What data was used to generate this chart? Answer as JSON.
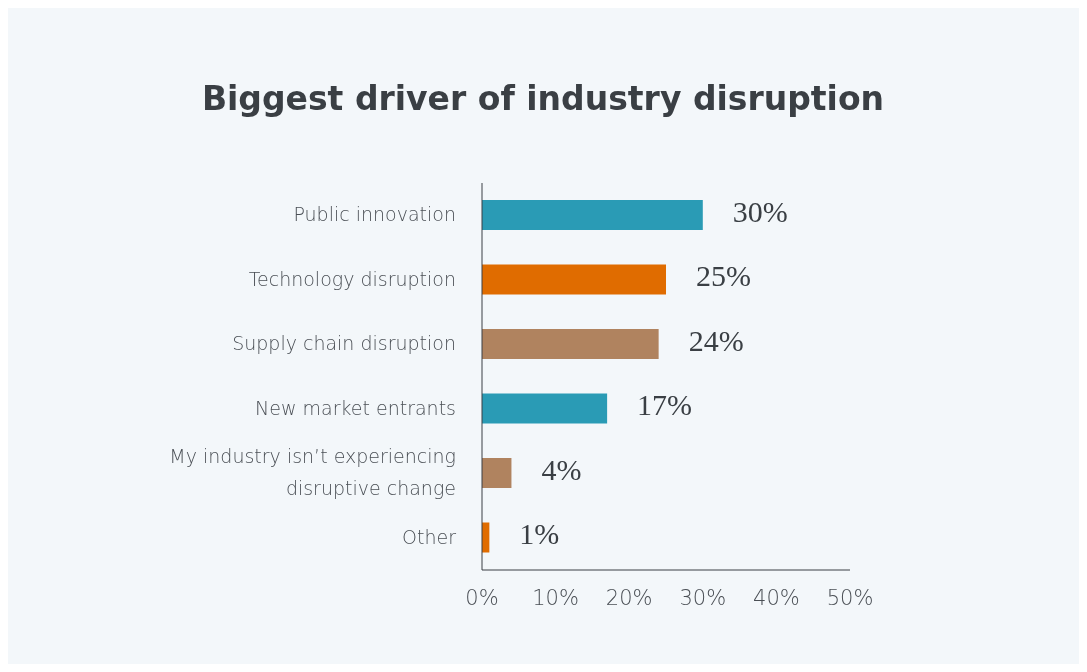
{
  "chart_data": {
    "type": "bar",
    "orientation": "horizontal",
    "title": "Biggest driver of industry disruption",
    "categories": [
      "Public innovation",
      "Technology disruption",
      "Supply chain disruption",
      "New market entrants",
      "My industry isn’t experiencing disruptive change",
      "Other"
    ],
    "values": [
      30,
      25,
      24,
      17,
      4,
      1
    ],
    "colors": [
      "#2a9bb5",
      "#e06c00",
      "#b0835f",
      "#2a9bb5",
      "#b0835f",
      "#e06c00"
    ],
    "value_labels": [
      "30%",
      "25%",
      "24%",
      "17%",
      "4%",
      "1%"
    ],
    "xlim": [
      0,
      50
    ],
    "xticks": [
      {
        "value": 0,
        "label": "0%"
      },
      {
        "value": 10,
        "label": "10%"
      },
      {
        "value": 20,
        "label": "20%"
      },
      {
        "value": 30,
        "label": "30%"
      },
      {
        "value": 40,
        "label": "40%"
      },
      {
        "value": 50,
        "label": "50%"
      }
    ],
    "grid": false,
    "legend": false
  }
}
